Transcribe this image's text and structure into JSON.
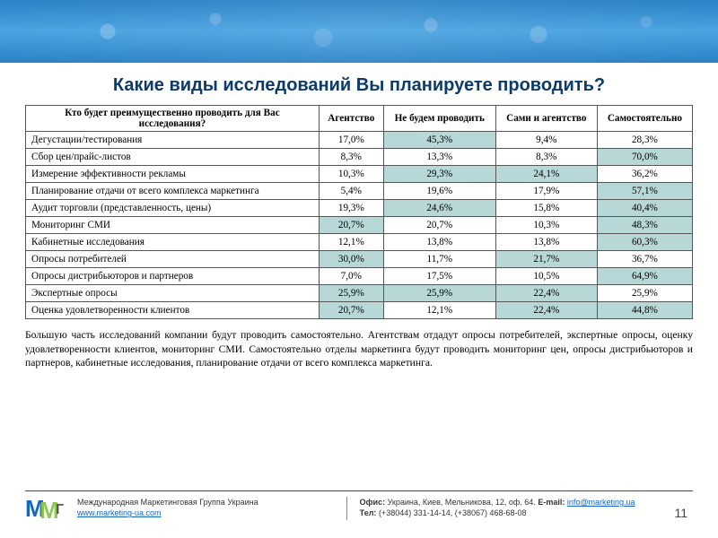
{
  "title": "Какие виды исследований Вы планируете проводить?",
  "table": {
    "headers": {
      "q": "Кто будет преимущественно проводить для Вас исследования?",
      "c1": "Агентство",
      "c2": "Не будем проводить",
      "c3": "Сами и агентство",
      "c4": "Самостоятельно"
    },
    "rows": [
      {
        "label": "Дегустации/тестирования",
        "v": [
          "17,0%",
          "45,3%",
          "9,4%",
          "28,3%"
        ],
        "hl": [
          0,
          1,
          0,
          0
        ]
      },
      {
        "label": "Сбор цен/прайс-листов",
        "v": [
          "8,3%",
          "13,3%",
          "8,3%",
          "70,0%"
        ],
        "hl": [
          0,
          0,
          0,
          1
        ]
      },
      {
        "label": "Измерение эффективности рекламы",
        "v": [
          "10,3%",
          "29,3%",
          "24,1%",
          "36,2%"
        ],
        "hl": [
          0,
          1,
          1,
          0
        ]
      },
      {
        "label": "Планирование отдачи от всего комплекса маркетинга",
        "v": [
          "5,4%",
          "19,6%",
          "17,9%",
          "57,1%"
        ],
        "hl": [
          0,
          0,
          0,
          1
        ]
      },
      {
        "label": "Аудит торговли (представленность, цены)",
        "v": [
          "19,3%",
          "24,6%",
          "15,8%",
          "40,4%"
        ],
        "hl": [
          0,
          1,
          0,
          1
        ]
      },
      {
        "label": "Мониторинг СМИ",
        "v": [
          "20,7%",
          "20,7%",
          "10,3%",
          "48,3%"
        ],
        "hl": [
          1,
          0,
          0,
          1
        ]
      },
      {
        "label": "Кабинетные исследования",
        "v": [
          "12,1%",
          "13,8%",
          "13,8%",
          "60,3%"
        ],
        "hl": [
          0,
          0,
          0,
          1
        ]
      },
      {
        "label": "Опросы потребителей",
        "v": [
          "30,0%",
          "11,7%",
          "21,7%",
          "36,7%"
        ],
        "hl": [
          1,
          0,
          1,
          0
        ]
      },
      {
        "label": "Опросы дистрибьюторов и партнеров",
        "v": [
          "7,0%",
          "17,5%",
          "10,5%",
          "64,9%"
        ],
        "hl": [
          0,
          0,
          0,
          1
        ]
      },
      {
        "label": "Экспертные опросы",
        "v": [
          "25,9%",
          "25,9%",
          "22,4%",
          "25,9%"
        ],
        "hl": [
          1,
          1,
          1,
          0
        ]
      },
      {
        "label": "Оценка удовлетворенности клиентов",
        "v": [
          "20,7%",
          "12,1%",
          "22,4%",
          "44,8%"
        ],
        "hl": [
          1,
          0,
          1,
          1
        ]
      }
    ],
    "highlight_color": "#b8d8d8",
    "border_color": "#555555",
    "fontsize": 11.2
  },
  "paragraph": "Большую часть исследований компании будут проводить самостоятельно. Агентствам отдадут опросы потребителей, экспертные опросы, оценку удовлетворенности клиентов, мониторинг СМИ. Самостоятельно отделы маркетинга будут проводить мониторинг цен, опросы дистрибьюторов и партнеров, кабинетные исследования, планирование отдачи от всего комплекса маркетинга.",
  "footer": {
    "company": "Международная Маркетинговая Группа Украина",
    "site": "www.marketing-ua.com",
    "office_label": "Офис:",
    "office": " Украина, Киев, Мельникова, 12, оф. 64. ",
    "email_label": "E-mail: ",
    "email": "info@marketing.ua",
    "tel_label": "Тел:",
    "tel": " (+38044) 331-14-14, (+38067) 468-68-08"
  },
  "page_number": "11",
  "colors": {
    "title": "#0b3a6b",
    "banner_top": "#2b81c5",
    "banner_mid": "#4ba3e0",
    "link": "#1565c0"
  }
}
